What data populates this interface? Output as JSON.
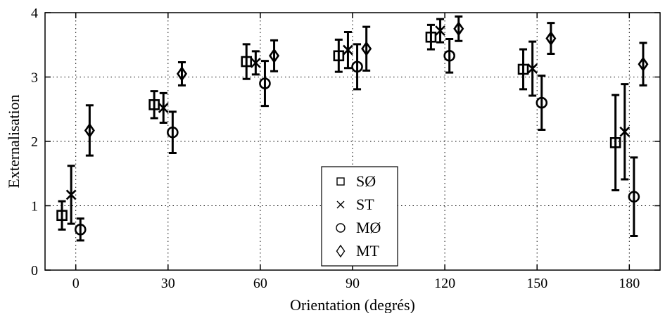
{
  "chart_data": {
    "type": "scatter",
    "title": "",
    "xlabel": "Orientation (degrés)",
    "ylabel": "Externalisation",
    "xlim": [
      -10,
      190
    ],
    "ylim": [
      0,
      4
    ],
    "xticks": [
      0,
      30,
      60,
      90,
      120,
      150,
      180
    ],
    "yticks": [
      0,
      1,
      2,
      3,
      4
    ],
    "grid": true,
    "legend_position": "bottom-center",
    "categories": [
      0,
      30,
      60,
      90,
      120,
      150,
      180
    ],
    "series": [
      {
        "name": "SØ",
        "marker": "square",
        "x": [
          -4.5,
          25.5,
          55.5,
          85.5,
          115.5,
          145.5,
          175.5
        ],
        "values": [
          0.85,
          2.57,
          3.24,
          3.33,
          3.62,
          3.12,
          1.98
        ],
        "error": [
          0.22,
          0.21,
          0.27,
          0.25,
          0.19,
          0.31,
          0.74
        ]
      },
      {
        "name": "ST",
        "marker": "x",
        "x": [
          -1.5,
          28.5,
          58.5,
          88.5,
          118.5,
          148.5,
          178.5
        ],
        "values": [
          1.17,
          2.52,
          3.22,
          3.42,
          3.72,
          3.13,
          2.15
        ],
        "error": [
          0.45,
          0.23,
          0.18,
          0.28,
          0.18,
          0.42,
          0.74
        ]
      },
      {
        "name": "MØ",
        "marker": "circle",
        "x": [
          1.5,
          31.5,
          61.5,
          91.5,
          121.5,
          151.5,
          181.5
        ],
        "values": [
          0.63,
          2.14,
          2.9,
          3.16,
          3.33,
          2.6,
          1.14
        ],
        "error": [
          0.17,
          0.32,
          0.35,
          0.35,
          0.26,
          0.42,
          0.61
        ]
      },
      {
        "name": "MT",
        "marker": "diamond",
        "x": [
          4.5,
          34.5,
          64.5,
          94.5,
          124.5,
          154.5,
          184.5
        ],
        "values": [
          2.17,
          3.05,
          3.33,
          3.44,
          3.75,
          3.6,
          3.2
        ],
        "error": [
          0.39,
          0.18,
          0.24,
          0.34,
          0.19,
          0.24,
          0.33
        ]
      }
    ]
  }
}
